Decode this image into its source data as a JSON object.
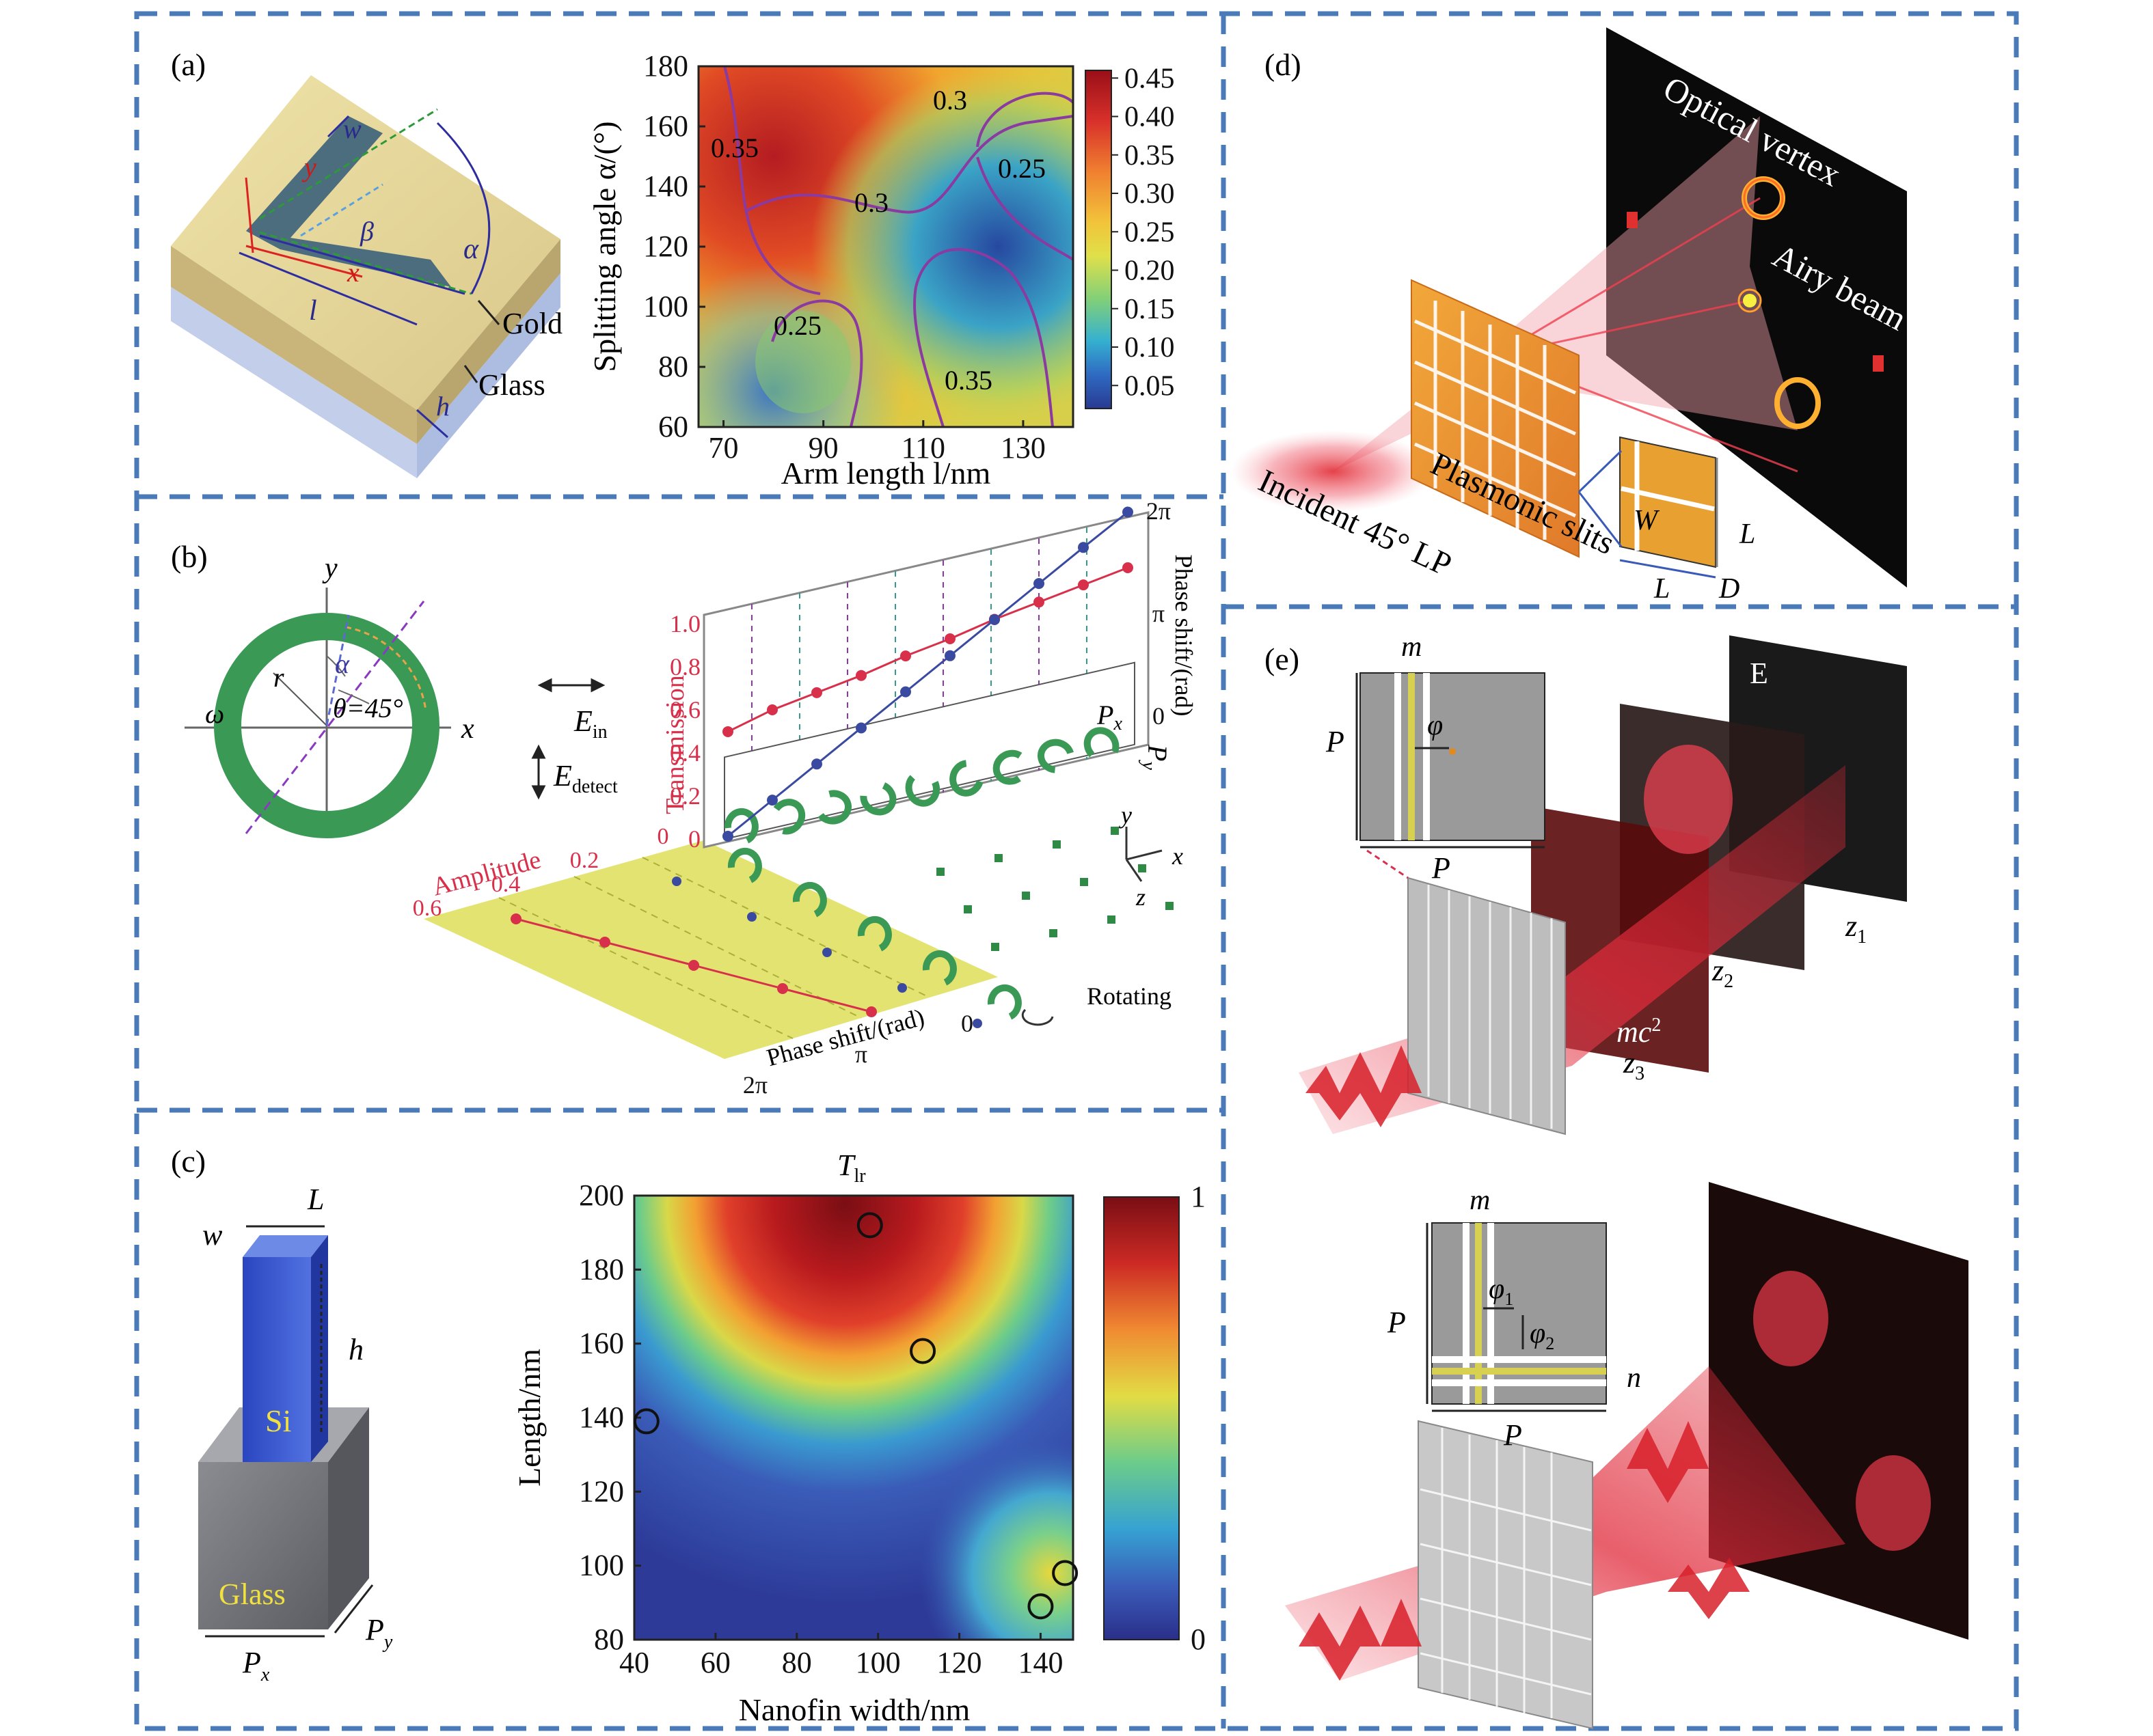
{
  "colors": {
    "frame": "#4a7ab8",
    "gold": "#e3d39a",
    "heat_red": "#c8281e",
    "heat_blue": "#2a3a9a",
    "green_ring": "#3a9a55",
    "plane_yellow": "#dede58",
    "laser": "#e0202a",
    "trans": "#d8304a",
    "phase": "#3a4aa0"
  },
  "panels": {
    "a": {
      "label": "(a)",
      "w": "w",
      "y": "y",
      "x": "x",
      "beta": "β",
      "alpha": "α",
      "l": "l",
      "h": "h",
      "gold": "Gold",
      "glass": "Glass"
    },
    "b": {
      "label": "(b)",
      "axis_y": "y",
      "axis_x": "x",
      "r": "r",
      "alpha": "α",
      "omega": "ω",
      "theta": "θ=45°",
      "e_in": "E",
      "e_in_sub": "in",
      "e_det": "E",
      "e_det_sub": "detect",
      "amplitude": "Amplitude",
      "transmission": "Transmission",
      "phase_shift": "Phase shift/(rad)",
      "phase_shift_bottom": "Phase shift/(rad)",
      "rotating": "Rotating",
      "px": "P",
      "px_sub": "x",
      "py": "P",
      "py_sub": "y",
      "x": "x",
      "y": "y",
      "z": "z",
      "amp_ticks": [
        "0.6",
        "0.4",
        "0.2",
        "0"
      ],
      "trans_ticks": [
        "1.0",
        "0.8",
        "0.6",
        "0.4",
        "0.2",
        "0"
      ],
      "phase_right_ticks": [
        "2π",
        "π",
        "0"
      ],
      "phase_bottom_ticks": [
        "2π",
        "π",
        "0"
      ]
    },
    "c": {
      "label": "(c)",
      "L": "L",
      "w": "w",
      "h": "h",
      "si": "Si",
      "glass": "Glass",
      "px": "P",
      "px_sub": "x",
      "py": "P",
      "py_sub": "y"
    },
    "d": {
      "label": "(d)",
      "optical_vortex": "Optical vertex",
      "airy_beam": "Airy beam",
      "plasmonic_slits": "Plasmonic slits",
      "incident": "Incident 45° LP",
      "W": "W",
      "L1": "L",
      "L2": "L",
      "D": "D"
    },
    "e": {
      "label": "(e)",
      "m1": "m",
      "phi": "φ",
      "P1": "P",
      "P2": "P",
      "E": "E",
      "z1": "z",
      "z1_sub": "1",
      "z2": "z",
      "z2_sub": "2",
      "z3": "z",
      "z3_sub": "3",
      "mc2": "mc",
      "mc2_sup": "2",
      "m2": "m",
      "phi1": "φ",
      "phi1_sub": "1",
      "phi2": "φ",
      "phi2_sub": "2",
      "n": "n",
      "P3": "P",
      "P4": "P"
    }
  },
  "chart_data": [
    {
      "type": "heatmap",
      "panel": "a",
      "xlabel": "Arm length l/nm",
      "ylabel": "Splitting angle α/(°)",
      "xticks": [
        "70",
        "90",
        "110",
        "130"
      ],
      "yticks": [
        "180",
        "160",
        "140",
        "120",
        "100",
        "80",
        "60"
      ],
      "xlim": [
        65,
        140
      ],
      "ylim": [
        60,
        180
      ],
      "colorbar_ticks": [
        "0.45",
        "0.40",
        "0.35",
        "0.30",
        "0.25",
        "0.20",
        "0.15",
        "0.10",
        "0.05"
      ],
      "colorbar_range": [
        0.02,
        0.46
      ],
      "contour_labels": [
        "0.35",
        "0.3",
        "0.3",
        "0.25",
        "0.25",
        "0.35"
      ]
    },
    {
      "type": "line",
      "panel": "b",
      "series": [
        {
          "name": "Transmission",
          "values": [
            0.45,
            0.5,
            0.53,
            0.56,
            0.6,
            0.63,
            0.67,
            0.7,
            0.73,
            0.76
          ]
        },
        {
          "name": "Phase shift",
          "values": [
            0.0,
            0.7,
            1.4,
            2.1,
            2.8,
            3.5,
            4.2,
            4.9,
            5.6,
            6.28
          ]
        },
        {
          "name": "Amplitude",
          "values": [
            0.6,
            0.5,
            0.4,
            0.3,
            0.2
          ]
        }
      ]
    },
    {
      "type": "heatmap",
      "panel": "c",
      "title": "T",
      "title_sub": "lr",
      "xlabel": "Nanofin width/nm",
      "ylabel": "Length/nm",
      "xticks": [
        "40",
        "60",
        "80",
        "100",
        "120",
        "140"
      ],
      "yticks": [
        "200",
        "180",
        "160",
        "140",
        "120",
        "100",
        "80"
      ],
      "xlim": [
        40,
        148
      ],
      "ylim": [
        80,
        200
      ],
      "colorbar_ticks": [
        "1",
        "0"
      ],
      "colorbar_range": [
        0,
        1
      ],
      "markers": [
        {
          "x": 98,
          "y": 192
        },
        {
          "x": 111,
          "y": 158
        },
        {
          "x": 43,
          "y": 139
        },
        {
          "x": 146,
          "y": 98
        },
        {
          "x": 140,
          "y": 89
        }
      ]
    }
  ]
}
